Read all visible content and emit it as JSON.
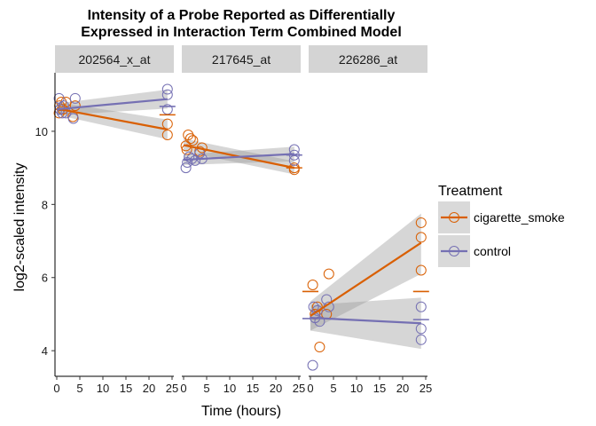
{
  "chart_data": {
    "type": "scatter",
    "title": "Intensity of a Probe Reported as Differentially\nExpressed in Interaction Term Combined Model",
    "xlabel": "Time (hours)",
    "ylabel": "log2-scaled intensity",
    "xlim": [
      0,
      25
    ],
    "ylim": [
      3.3,
      11.6
    ],
    "x_ticks": [
      0,
      5,
      10,
      15,
      20,
      25
    ],
    "y_ticks": [
      4,
      6,
      8,
      10
    ],
    "legend": {
      "title": "Treatment",
      "position": "right",
      "entries": [
        {
          "name": "cigarette_smoke",
          "color": "#D95F02"
        },
        {
          "name": "control",
          "color": "#7570B3"
        }
      ]
    },
    "panels": [
      {
        "label": "202564_x_at",
        "points": {
          "cigarette_smoke": [
            [
              0.5,
              10.5
            ],
            [
              0.6,
              10.7
            ],
            [
              1.0,
              10.8
            ],
            [
              1.3,
              10.6
            ],
            [
              2.0,
              10.8
            ],
            [
              3.5,
              10.4
            ],
            [
              4.0,
              10.7
            ],
            [
              24.0,
              10.2
            ],
            [
              24.0,
              9.9
            ]
          ],
          "control": [
            [
              0.5,
              10.9
            ],
            [
              0.7,
              10.6
            ],
            [
              1.2,
              10.5
            ],
            [
              1.5,
              10.7
            ],
            [
              2.0,
              10.5
            ],
            [
              3.6,
              10.35
            ],
            [
              4.0,
              10.9
            ],
            [
              24.0,
              11.15
            ],
            [
              24.0,
              11.0
            ],
            [
              24.0,
              10.6
            ]
          ]
        },
        "fits": {
          "cigarette_smoke": {
            "x": [
              0,
              24
            ],
            "y": [
              10.62,
              10.05
            ],
            "ci_low": [
              10.45,
              9.78
            ],
            "ci_high": [
              10.8,
              10.32
            ]
          },
          "control": {
            "x": [
              0,
              24
            ],
            "y": [
              10.6,
              10.88
            ],
            "ci_low": [
              10.44,
              10.62
            ],
            "ci_high": [
              10.76,
              11.14
            ]
          }
        },
        "means": {
          "cigarette_smoke": [
            {
              "x": 24,
              "y": 10.45
            }
          ],
          "control": [
            {
              "x": 24,
              "y": 10.68
            }
          ]
        }
      },
      {
        "label": "217645_at",
        "points": {
          "cigarette_smoke": [
            [
              0.5,
              9.6
            ],
            [
              0.7,
              9.5
            ],
            [
              1.0,
              9.9
            ],
            [
              1.5,
              9.8
            ],
            [
              2.0,
              9.75
            ],
            [
              3.5,
              9.45
            ],
            [
              4.0,
              9.55
            ],
            [
              24.0,
              9.0
            ],
            [
              24.0,
              8.95
            ]
          ],
          "control": [
            [
              0.5,
              9.0
            ],
            [
              0.8,
              9.15
            ],
            [
              1.2,
              9.3
            ],
            [
              1.8,
              9.25
            ],
            [
              2.5,
              9.2
            ],
            [
              3.5,
              9.4
            ],
            [
              4.0,
              9.25
            ],
            [
              24.0,
              9.5
            ],
            [
              24.0,
              9.2
            ],
            [
              24.0,
              9.35
            ]
          ]
        },
        "fits": {
          "cigarette_smoke": {
            "x": [
              0,
              24
            ],
            "y": [
              9.62,
              9.0
            ],
            "ci_low": [
              9.45,
              8.82
            ],
            "ci_high": [
              9.8,
              9.18
            ]
          },
          "control": {
            "x": [
              0,
              24
            ],
            "y": [
              9.22,
              9.38
            ],
            "ci_low": [
              9.08,
              9.18
            ],
            "ci_high": [
              9.36,
              9.58
            ]
          }
        },
        "means": {
          "cigarette_smoke": [
            {
              "x": 24,
              "y": 9.0
            }
          ],
          "control": [
            {
              "x": 24,
              "y": 9.35
            }
          ]
        }
      },
      {
        "label": "226286_at",
        "points": {
          "cigarette_smoke": [
            [
              0.5,
              5.8
            ],
            [
              1.0,
              5.0
            ],
            [
              1.5,
              5.2
            ],
            [
              2.0,
              4.1
            ],
            [
              3.5,
              5.0
            ],
            [
              4.0,
              6.1
            ],
            [
              24.0,
              7.5
            ],
            [
              24.0,
              7.1
            ],
            [
              24.0,
              6.2
            ]
          ],
          "control": [
            [
              0.5,
              3.6
            ],
            [
              0.7,
              5.2
            ],
            [
              1.0,
              4.9
            ],
            [
              1.5,
              5.1
            ],
            [
              2.0,
              4.8
            ],
            [
              3.5,
              5.4
            ],
            [
              4.0,
              5.2
            ],
            [
              24.0,
              5.2
            ],
            [
              24.0,
              4.6
            ],
            [
              24.0,
              4.3
            ]
          ]
        },
        "fits": {
          "cigarette_smoke": {
            "x": [
              0,
              24
            ],
            "y": [
              4.95,
              6.95
            ],
            "ci_low": [
              4.55,
              6.1
            ],
            "ci_high": [
              5.35,
              7.75
            ]
          },
          "control": {
            "x": [
              0,
              24
            ],
            "y": [
              4.9,
              4.75
            ],
            "ci_low": [
              4.55,
              4.05
            ],
            "ci_high": [
              5.25,
              5.45
            ]
          }
        },
        "means": {
          "cigarette_smoke": [
            {
              "x": 0,
              "y": 5.62
            },
            {
              "x": 24,
              "y": 5.62
            }
          ],
          "control": [
            {
              "x": 0,
              "y": 4.88
            },
            {
              "x": 24,
              "y": 4.85
            }
          ]
        }
      }
    ]
  }
}
